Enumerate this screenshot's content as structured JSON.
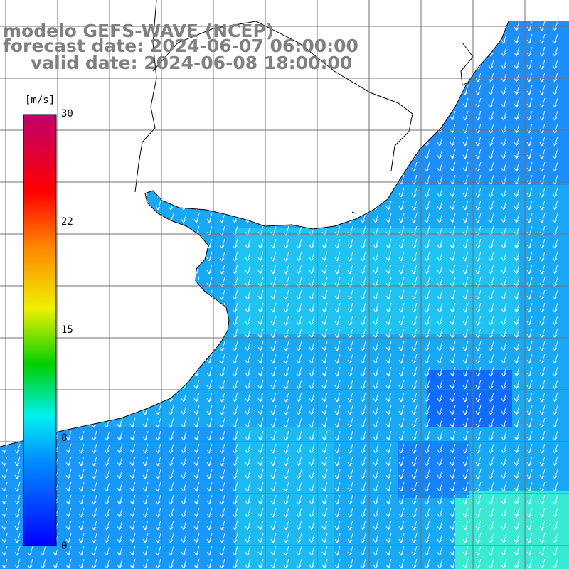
{
  "title": {
    "model": "modelo GEFS-WAVE (NCEP)",
    "forecast": "forecast date: 2024-06-07 06:00:00",
    "valid": "valid date: 2024-06-08 18:00:00"
  },
  "colorbar": {
    "unit": "[m/s]",
    "ticks": [
      "30",
      "22",
      "15",
      "8",
      "0"
    ],
    "values": [
      30,
      22,
      15,
      8,
      0
    ],
    "range": [
      0,
      30
    ],
    "colors": [
      "#0000ff",
      "#0090ff",
      "#00f0f0",
      "#00d000",
      "#f0f000",
      "#ff8000",
      "#ff0000",
      "#c0006a"
    ]
  },
  "map": {
    "variable": "wind speed and direction",
    "field_color_low": "#1f6fff",
    "field_color_mid": "#18b0f4",
    "field_color_high": "#3ef0d0",
    "land_color": "#ffffff",
    "arrow_color": "#ffffff",
    "prevailing_direction": "south-southwest"
  }
}
